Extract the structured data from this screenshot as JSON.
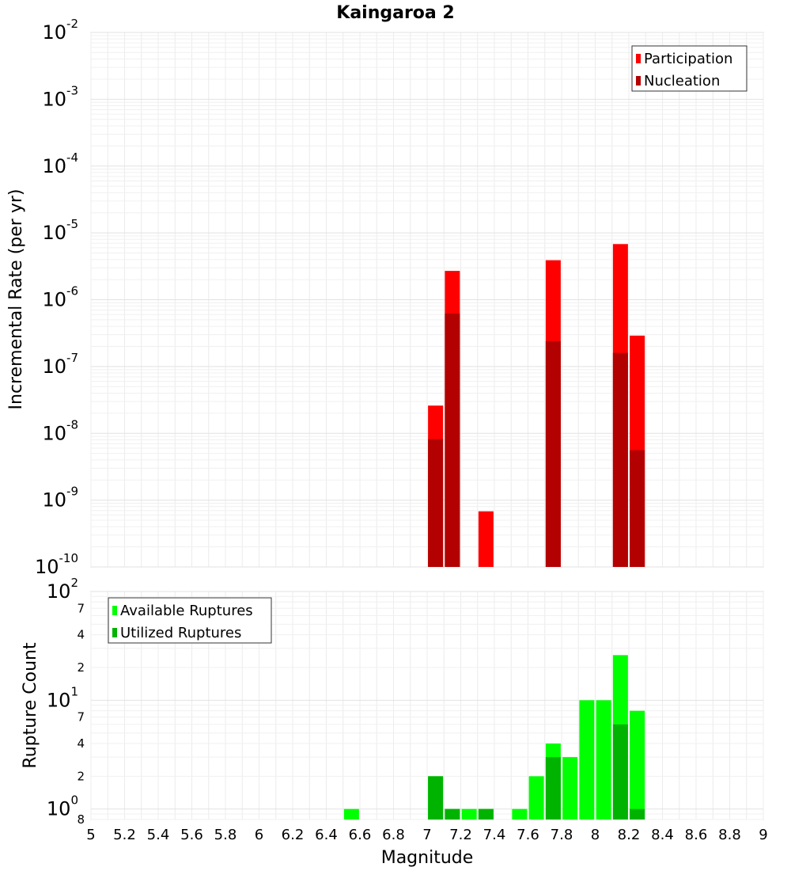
{
  "chart_data": {
    "title": "Kaingaroa 2",
    "xlabel": "Magnitude",
    "xlim": [
      5,
      9
    ],
    "xticks": [
      "5",
      "5.2",
      "5.4",
      "5.6",
      "5.8",
      "6",
      "6.2",
      "6.4",
      "6.6",
      "6.8",
      "7",
      "7.2",
      "7.4",
      "7.6",
      "7.8",
      "8",
      "8.2",
      "8.4",
      "8.6",
      "8.8",
      "9"
    ],
    "panels": [
      {
        "type": "bar",
        "ylabel": "Incremental Rate (per yr)",
        "yscale": "log",
        "ylim": [
          1e-10,
          0.01
        ],
        "yticks": [
          {
            "base": "10",
            "exp": "-10"
          },
          {
            "base": "10",
            "exp": "-9"
          },
          {
            "base": "10",
            "exp": "-8"
          },
          {
            "base": "10",
            "exp": "-7"
          },
          {
            "base": "10",
            "exp": "-6"
          },
          {
            "base": "10",
            "exp": "-5"
          },
          {
            "base": "10",
            "exp": "-4"
          },
          {
            "base": "10",
            "exp": "-3"
          },
          {
            "base": "10",
            "exp": "-2"
          }
        ],
        "legend_position": "top-right",
        "series": [
          {
            "name": "Participation",
            "color": "#ff0000",
            "points": [
              {
                "x": 7.05,
                "y": 2.6e-08
              },
              {
                "x": 7.15,
                "y": 2.7e-06
              },
              {
                "x": 7.35,
                "y": 6.8e-10
              },
              {
                "x": 7.75,
                "y": 3.9e-06
              },
              {
                "x": 8.15,
                "y": 6.8e-06
              },
              {
                "x": 8.25,
                "y": 2.9e-07
              }
            ]
          },
          {
            "name": "Nucleation",
            "color": "#b30000",
            "points": [
              {
                "x": 7.05,
                "y": 8.2e-09
              },
              {
                "x": 7.15,
                "y": 6.2e-07
              },
              {
                "x": 7.75,
                "y": 2.4e-07
              },
              {
                "x": 8.15,
                "y": 1.6e-07
              },
              {
                "x": 8.25,
                "y": 5.6e-09
              }
            ]
          }
        ]
      },
      {
        "type": "bar",
        "ylabel": "Rupture Count",
        "yscale": "log",
        "ylim": [
          0.8,
          100
        ],
        "yticks": [
          {
            "base": "10",
            "exp": "0"
          },
          {
            "base": "10",
            "exp": "1"
          },
          {
            "base": "10",
            "exp": "2"
          }
        ],
        "yminor_labels": [
          "8",
          "2",
          "4",
          "7",
          "2",
          "4",
          "7"
        ],
        "yminor_values": [
          0.8,
          2,
          4,
          7,
          20,
          40,
          70
        ],
        "legend_position": "top-left",
        "series": [
          {
            "name": "Available Ruptures",
            "color": "#00ff00",
            "points": [
              {
                "x": 6.55,
                "y": 1
              },
              {
                "x": 7.05,
                "y": 2
              },
              {
                "x": 7.15,
                "y": 1
              },
              {
                "x": 7.25,
                "y": 1
              },
              {
                "x": 7.35,
                "y": 1
              },
              {
                "x": 7.55,
                "y": 1
              },
              {
                "x": 7.65,
                "y": 2
              },
              {
                "x": 7.75,
                "y": 4
              },
              {
                "x": 7.85,
                "y": 3
              },
              {
                "x": 7.95,
                "y": 10
              },
              {
                "x": 8.05,
                "y": 10
              },
              {
                "x": 8.15,
                "y": 26
              },
              {
                "x": 8.25,
                "y": 8
              }
            ]
          },
          {
            "name": "Utilized Ruptures",
            "color": "#00b300",
            "points": [
              {
                "x": 7.05,
                "y": 2
              },
              {
                "x": 7.15,
                "y": 1
              },
              {
                "x": 7.35,
                "y": 1
              },
              {
                "x": 7.75,
                "y": 3
              },
              {
                "x": 8.15,
                "y": 6
              },
              {
                "x": 8.25,
                "y": 1
              }
            ]
          }
        ]
      }
    ]
  }
}
